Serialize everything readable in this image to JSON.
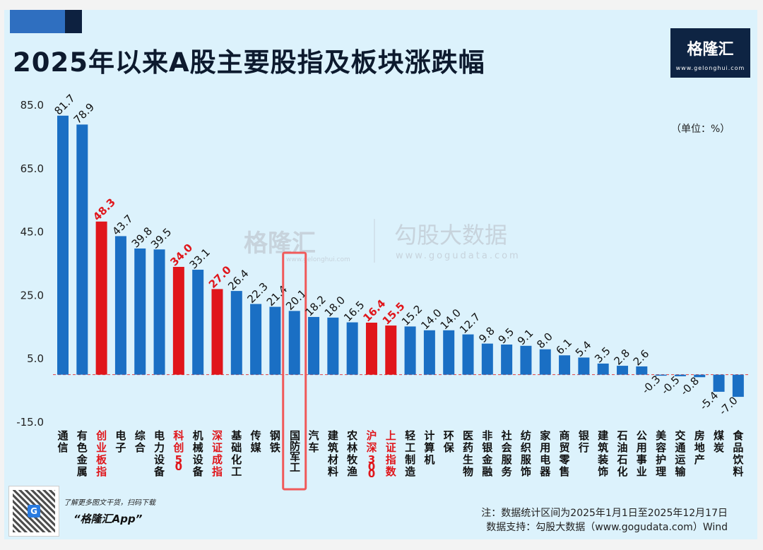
{
  "title": "2025年以来A股主要股指及板块涨跌幅",
  "logo": {
    "name": "格隆汇",
    "url": "www.gelonghui.com"
  },
  "watermark": {
    "left": "格隆汇",
    "left_url": "www.gelonghui.com",
    "right": "勾股大数据",
    "right_url": "www.gogudata.com"
  },
  "unit_label": "（单位：%）",
  "footer": {
    "promo_line": "了解更多图文干货，扫码下载",
    "app_name": "“格隆汇App”",
    "note": "注：数据统计区间为2025年1月1日至2025年12月17日",
    "source": "数据支持：勾股大数据（www.gogudata.com）Wind"
  },
  "colors": {
    "sector": "#1a6fc4",
    "index": "#e0161b",
    "highlight_box": "#f05a5a",
    "zero_line": "#e34040"
  },
  "chart_data": {
    "type": "bar",
    "title": "2025年以来A股主要股指及板块涨跌幅",
    "ylabel": "单位：%",
    "ylim": [
      -15,
      85
    ],
    "yticks": [
      85.0,
      65.0,
      45.0,
      25.0,
      5.0,
      -15.0
    ],
    "ytick_labels": [
      "85.0",
      "65.0",
      "45.0",
      "25.0",
      "5.0",
      "-15.0"
    ],
    "highlighted_category": "国防军工",
    "categories": [
      "通信",
      "有色金属",
      "创业板指",
      "电子",
      "综合",
      "电力设备",
      "科创50",
      "机械设备",
      "深证成指",
      "基础化工",
      "传媒",
      "钢铁",
      "国防军工",
      "汽车",
      "建筑材料",
      "农林牧渔",
      "沪深300",
      "上证指数",
      "轻工制造",
      "计算机",
      "环保",
      "医药生物",
      "非银金融",
      "社会服务",
      "纺织服饰",
      "家用电器",
      "商贸零售",
      "银行",
      "建筑装饰",
      "石油石化",
      "公用事业",
      "美容护理",
      "交通运输",
      "房地产",
      "煤炭",
      "食品饮料"
    ],
    "values": [
      81.7,
      78.9,
      48.3,
      43.7,
      39.8,
      39.5,
      34.0,
      33.1,
      27.0,
      26.4,
      22.3,
      21.4,
      20.1,
      18.2,
      18.0,
      16.5,
      16.4,
      15.5,
      15.2,
      14.0,
      14.0,
      12.7,
      9.8,
      9.5,
      9.1,
      8.0,
      6.1,
      5.4,
      3.5,
      2.8,
      2.6,
      -0.3,
      -0.5,
      -0.8,
      -5.4,
      -7.0
    ],
    "is_index": [
      false,
      false,
      true,
      false,
      false,
      false,
      true,
      false,
      true,
      false,
      false,
      false,
      false,
      false,
      false,
      false,
      true,
      true,
      false,
      false,
      false,
      false,
      false,
      false,
      false,
      false,
      false,
      false,
      false,
      false,
      false,
      false,
      false,
      false,
      false,
      false
    ]
  }
}
